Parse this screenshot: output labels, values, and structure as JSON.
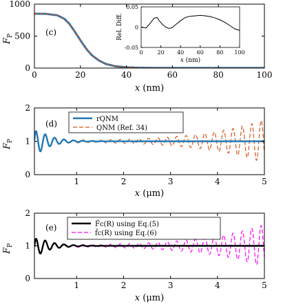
{
  "chart_data": [
    {
      "id": "c",
      "type": "line",
      "panel_label": "(c)",
      "xlabel": "x (nm)",
      "ylabel": "F_P",
      "xlim": [
        0,
        100
      ],
      "ylim": [
        0,
        1000
      ],
      "xticks": [
        0,
        20,
        40,
        60,
        80,
        100
      ],
      "yticks": [
        0,
        500,
        1000
      ],
      "grid": false,
      "series": [
        {
          "style": "solid-blue-under-orange-dash",
          "x": [
            0,
            5,
            10,
            13,
            15,
            17,
            19,
            21,
            23,
            25,
            28,
            31,
            35,
            40,
            45,
            50,
            60,
            70,
            80,
            90,
            100
          ],
          "y": [
            850,
            848,
            825,
            770,
            700,
            600,
            490,
            380,
            280,
            200,
            120,
            65,
            30,
            12,
            5,
            3,
            2,
            1,
            1,
            1,
            1
          ]
        }
      ],
      "inset": {
        "title": "Rel. Diff.",
        "xlabel": "x (nm)",
        "xlim": [
          0,
          100
        ],
        "ylim": [
          -0.05,
          0.05
        ],
        "xticks": [
          0,
          20,
          40,
          60,
          80,
          100
        ],
        "yticks": [
          -0.05,
          0,
          0.05
        ],
        "x": [
          0,
          5,
          10,
          13,
          16,
          19,
          22,
          25,
          28,
          31,
          35,
          40,
          45,
          50,
          55,
          60,
          65,
          70,
          75,
          80,
          85,
          90,
          95,
          100
        ],
        "y": [
          0.0,
          -0.002,
          0.012,
          0.022,
          0.024,
          0.014,
          0.006,
          0.0,
          -0.003,
          -0.002,
          0.006,
          0.016,
          0.024,
          0.027,
          0.028,
          0.029,
          0.028,
          0.026,
          0.023,
          0.018,
          0.012,
          0.004,
          -0.004,
          -0.008
        ]
      }
    },
    {
      "id": "d",
      "type": "line",
      "panel_label": "(d)",
      "xlabel": "x (μm)",
      "ylabel": "F_P",
      "xlim": [
        0.1,
        5
      ],
      "ylim": [
        0,
        2
      ],
      "xticks": [
        1,
        2,
        3,
        4,
        5
      ],
      "yticks": [
        0,
        1,
        2
      ],
      "grid": false,
      "legend": [
        "rQNM",
        "QNM (Ref. 34)"
      ],
      "series": [
        {
          "name": "rQNM",
          "color": "#1f77b4",
          "style": "solid",
          "mode": "damped",
          "amp0": 0.45,
          "decay": 1.1
        },
        {
          "name": "QNM (Ref. 34)",
          "color": "#d95319",
          "style": "dashed",
          "mode": "growing",
          "amp0": 0.45,
          "decay": 1.1
        }
      ]
    },
    {
      "id": "e",
      "type": "line",
      "panel_label": "(e)",
      "xlabel": "x (μm)",
      "ylabel": "F_P",
      "xlim": [
        0.1,
        5
      ],
      "ylim": [
        0,
        2
      ],
      "xticks": [
        1,
        2,
        3,
        4,
        5
      ],
      "yticks": [
        0,
        1,
        2
      ],
      "grid": false,
      "legend": [
        "F̃c(R) using Eq.(5)",
        "f̃c(R) using Eq.(6)"
      ],
      "series": [
        {
          "name": "F̃c(R) using Eq.(5)",
          "color": "#000000",
          "style": "solid",
          "mode": "damped",
          "amp0": 0.35,
          "decay": 1.1
        },
        {
          "name": "f̃c(R) using Eq.(6)",
          "color": "#ff00ff",
          "style": "dashed",
          "mode": "growing",
          "amp0": 0.35,
          "decay": 1.1
        }
      ]
    }
  ]
}
